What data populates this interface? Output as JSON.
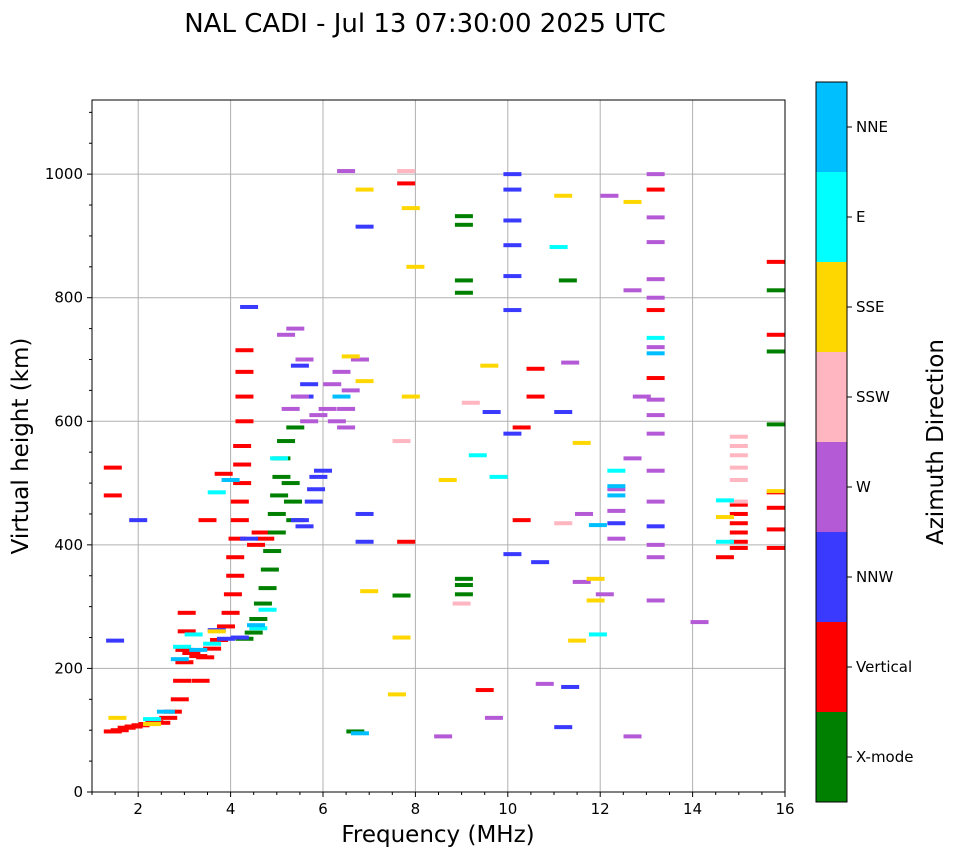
{
  "chart_data": {
    "type": "scatter",
    "title": "NAL CADI - Jul 13 07:30:00 2025 UTC",
    "xlabel": "Frequency (MHz)",
    "ylabel": "Virtual height (km)",
    "xlim": [
      1,
      16
    ],
    "ylim": [
      0,
      1120
    ],
    "xticks": [
      2,
      4,
      6,
      8,
      10,
      12,
      14,
      16
    ],
    "yticks": [
      0,
      200,
      400,
      600,
      800,
      1000
    ],
    "grid": true,
    "colorbar": {
      "label": "Azimuth Direction",
      "categories": [
        "X-mode",
        "Vertical",
        "NNW",
        "W",
        "SSW",
        "SSE",
        "E",
        "NNE"
      ],
      "colors": {
        "X-mode": "#008000",
        "Vertical": "#ff0000",
        "NNW": "#3a3aff",
        "W": "#b55ad6",
        "SSW": "#ffb6c1",
        "SSE": "#ffd700",
        "E": "#00ffff",
        "NNE": "#00bfff"
      }
    },
    "series": [
      {
        "name": "Vertical",
        "points": [
          [
            1.45,
            98
          ],
          [
            1.6,
            100
          ],
          [
            1.75,
            104
          ],
          [
            1.9,
            106
          ],
          [
            2.05,
            108
          ],
          [
            2.2,
            110
          ],
          [
            2.35,
            113
          ],
          [
            2.5,
            112
          ],
          [
            2.65,
            120
          ],
          [
            2.75,
            130
          ],
          [
            2.9,
            150
          ],
          [
            2.95,
            180
          ],
          [
            3.0,
            210
          ],
          [
            3.0,
            230
          ],
          [
            3.05,
            260
          ],
          [
            3.05,
            290
          ],
          [
            3.15,
            225
          ],
          [
            3.3,
            220
          ],
          [
            3.45,
            218
          ],
          [
            3.6,
            232
          ],
          [
            3.75,
            246
          ],
          [
            3.9,
            268
          ],
          [
            4.0,
            290
          ],
          [
            4.05,
            320
          ],
          [
            4.1,
            350
          ],
          [
            4.1,
            380
          ],
          [
            4.15,
            410
          ],
          [
            4.2,
            440
          ],
          [
            4.2,
            470
          ],
          [
            4.25,
            500
          ],
          [
            4.25,
            530
          ],
          [
            4.25,
            560
          ],
          [
            4.3,
            600
          ],
          [
            4.3,
            640
          ],
          [
            4.3,
            680
          ],
          [
            4.3,
            715
          ],
          [
            4.55,
            400
          ],
          [
            4.65,
            420
          ],
          [
            4.75,
            410
          ],
          [
            1.45,
            480
          ],
          [
            1.45,
            525
          ],
          [
            3.35,
            180
          ],
          [
            3.5,
            440
          ],
          [
            3.85,
            515
          ],
          [
            7.8,
            405
          ],
          [
            7.8,
            985
          ],
          [
            9.5,
            165
          ],
          [
            10.3,
            440
          ],
          [
            10.3,
            590
          ],
          [
            10.6,
            640
          ],
          [
            10.6,
            685
          ],
          [
            13.2,
            670
          ],
          [
            13.2,
            780
          ],
          [
            13.2,
            975
          ],
          [
            14.7,
            380
          ],
          [
            15.0,
            395
          ],
          [
            15.0,
            405
          ],
          [
            15.0,
            420
          ],
          [
            15.0,
            435
          ],
          [
            15.0,
            450
          ],
          [
            15.0,
            465
          ],
          [
            15.8,
            395
          ],
          [
            15.8,
            425
          ],
          [
            15.8,
            460
          ],
          [
            15.8,
            485
          ],
          [
            15.8,
            740
          ],
          [
            15.8,
            858
          ]
        ]
      },
      {
        "name": "X-mode",
        "points": [
          [
            4.3,
            248
          ],
          [
            4.5,
            258
          ],
          [
            4.6,
            280
          ],
          [
            4.7,
            305
          ],
          [
            4.8,
            330
          ],
          [
            4.85,
            360
          ],
          [
            4.9,
            390
          ],
          [
            5.0,
            420
          ],
          [
            5.0,
            450
          ],
          [
            5.05,
            480
          ],
          [
            5.1,
            510
          ],
          [
            5.1,
            540
          ],
          [
            5.2,
            568
          ],
          [
            5.3,
            500
          ],
          [
            5.35,
            470
          ],
          [
            5.4,
            440
          ],
          [
            5.4,
            590
          ],
          [
            6.7,
            98
          ],
          [
            7.7,
            318
          ],
          [
            9.05,
            320
          ],
          [
            9.05,
            335
          ],
          [
            9.05,
            345
          ],
          [
            9.05,
            808
          ],
          [
            9.05,
            828
          ],
          [
            9.05,
            918
          ],
          [
            9.05,
            932
          ],
          [
            11.3,
            828
          ],
          [
            15.8,
            595
          ],
          [
            15.8,
            713
          ],
          [
            15.8,
            812
          ]
        ]
      },
      {
        "name": "NNW",
        "points": [
          [
            1.5,
            245
          ],
          [
            3.7,
            262
          ],
          [
            3.9,
            248
          ],
          [
            4.2,
            250
          ],
          [
            4.4,
            410
          ],
          [
            5.5,
            440
          ],
          [
            5.6,
            430
          ],
          [
            5.8,
            470
          ],
          [
            5.85,
            490
          ],
          [
            5.9,
            510
          ],
          [
            6.0,
            520
          ],
          [
            5.6,
            640
          ],
          [
            5.7,
            660
          ],
          [
            5.5,
            690
          ],
          [
            4.4,
            785
          ],
          [
            2.0,
            440
          ],
          [
            6.9,
            405
          ],
          [
            6.9,
            450
          ],
          [
            6.9,
            915
          ],
          [
            9.65,
            615
          ],
          [
            10.1,
            385
          ],
          [
            10.1,
            580
          ],
          [
            10.1,
            780
          ],
          [
            10.1,
            835
          ],
          [
            10.1,
            885
          ],
          [
            10.1,
            925
          ],
          [
            10.1,
            975
          ],
          [
            10.1,
            1000
          ],
          [
            10.7,
            372
          ],
          [
            11.2,
            615
          ],
          [
            11.2,
            105
          ],
          [
            11.35,
            170
          ],
          [
            12.35,
            435
          ],
          [
            13.2,
            430
          ]
        ]
      },
      {
        "name": "W",
        "points": [
          [
            5.3,
            620
          ],
          [
            5.5,
            640
          ],
          [
            5.7,
            600
          ],
          [
            5.9,
            610
          ],
          [
            6.1,
            620
          ],
          [
            6.3,
            600
          ],
          [
            6.5,
            590
          ],
          [
            6.5,
            620
          ],
          [
            6.2,
            660
          ],
          [
            6.4,
            680
          ],
          [
            6.6,
            650
          ],
          [
            5.6,
            700
          ],
          [
            5.2,
            740
          ],
          [
            5.4,
            750
          ],
          [
            6.8,
            700
          ],
          [
            6.5,
            1005
          ],
          [
            8.6,
            90
          ],
          [
            9.7,
            120
          ],
          [
            10.8,
            175
          ],
          [
            11.35,
            695
          ],
          [
            11.6,
            340
          ],
          [
            12.1,
            320
          ],
          [
            12.35,
            410
          ],
          [
            12.35,
            455
          ],
          [
            12.35,
            490
          ],
          [
            12.7,
            90
          ],
          [
            12.7,
            540
          ],
          [
            12.7,
            812
          ],
          [
            12.9,
            640
          ],
          [
            13.2,
            310
          ],
          [
            13.2,
            380
          ],
          [
            13.2,
            400
          ],
          [
            13.2,
            470
          ],
          [
            13.2,
            520
          ],
          [
            13.2,
            580
          ],
          [
            13.2,
            610
          ],
          [
            13.2,
            635
          ],
          [
            13.2,
            720
          ],
          [
            13.2,
            800
          ],
          [
            13.2,
            830
          ],
          [
            13.2,
            890
          ],
          [
            13.2,
            930
          ],
          [
            13.2,
            1000
          ],
          [
            14.15,
            275
          ],
          [
            11.65,
            450
          ],
          [
            12.2,
            965
          ]
        ]
      },
      {
        "name": "SSW",
        "points": [
          [
            15.0,
            505
          ],
          [
            15.0,
            525
          ],
          [
            15.0,
            545
          ],
          [
            15.0,
            560
          ],
          [
            15.0,
            575
          ],
          [
            15.0,
            470
          ],
          [
            9.0,
            305
          ],
          [
            9.2,
            630
          ],
          [
            7.8,
            1005
          ],
          [
            11.2,
            435
          ],
          [
            7.7,
            568
          ]
        ]
      },
      {
        "name": "SSE",
        "points": [
          [
            1.55,
            120
          ],
          [
            2.3,
            110
          ],
          [
            3.7,
            260
          ],
          [
            6.6,
            705
          ],
          [
            6.9,
            665
          ],
          [
            6.9,
            975
          ],
          [
            7.0,
            325
          ],
          [
            7.6,
            158
          ],
          [
            7.7,
            250
          ],
          [
            7.9,
            640
          ],
          [
            8.0,
            850
          ],
          [
            8.7,
            505
          ],
          [
            9.6,
            690
          ],
          [
            11.2,
            965
          ],
          [
            11.5,
            245
          ],
          [
            11.6,
            565
          ],
          [
            11.9,
            345
          ],
          [
            11.9,
            310
          ],
          [
            12.7,
            955
          ],
          [
            14.7,
            445
          ],
          [
            15.8,
            487
          ],
          [
            7.9,
            945
          ]
        ]
      },
      {
        "name": "E",
        "points": [
          [
            2.3,
            118
          ],
          [
            2.95,
            235
          ],
          [
            3.2,
            255
          ],
          [
            3.6,
            240
          ],
          [
            3.7,
            485
          ],
          [
            4.6,
            265
          ],
          [
            4.8,
            295
          ],
          [
            5.05,
            540
          ],
          [
            9.35,
            545
          ],
          [
            9.8,
            510
          ],
          [
            11.1,
            882
          ],
          [
            11.95,
            255
          ],
          [
            12.35,
            520
          ],
          [
            13.2,
            735
          ],
          [
            14.7,
            472
          ],
          [
            14.7,
            405
          ]
        ]
      },
      {
        "name": "NNE",
        "points": [
          [
            2.6,
            130
          ],
          [
            2.9,
            215
          ],
          [
            3.3,
            230
          ],
          [
            4.0,
            505
          ],
          [
            4.55,
            270
          ],
          [
            6.4,
            640
          ],
          [
            12.35,
            495
          ],
          [
            12.35,
            480
          ],
          [
            11.95,
            432
          ],
          [
            13.2,
            710
          ],
          [
            6.8,
            95
          ]
        ]
      }
    ]
  }
}
